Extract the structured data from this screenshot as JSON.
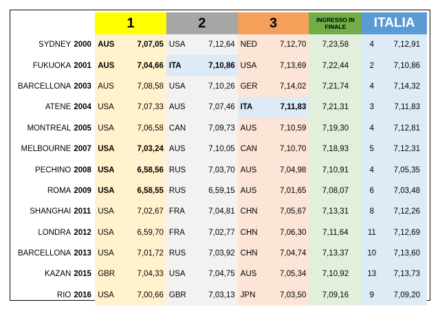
{
  "header": {
    "col1": "1",
    "col2": "2",
    "col3": "3",
    "ingresso": "INGRESSO IN FINALE",
    "italia": "ITALIA"
  },
  "rows": [
    {
      "city": "SYDNEY",
      "year": "2000",
      "n1": "AUS",
      "v1": "7,07,05",
      "n2": "USA",
      "v2": "7,12,64",
      "n3": "NED",
      "v3": "7,12,70",
      "ing": "7,23,58",
      "rank": "4",
      "time": "7,12,91"
    },
    {
      "city": "FUKUOKA",
      "year": "2001",
      "n1": "AUS",
      "v1": "7,04,66",
      "n2": "ITA",
      "v2": "7,10,86",
      "n3": "USA",
      "v3": "7,13,69",
      "ing": "7,22,44",
      "rank": "2",
      "time": "7,10,86"
    },
    {
      "city": "BARCELLONA",
      "year": "2003",
      "n1": "AUS",
      "v1": "7,08,58",
      "n2": "USA",
      "v2": "7,10,26",
      "n3": "GER",
      "v3": "7,14,02",
      "ing": "7,21,74",
      "rank": "4",
      "time": "7,14,32"
    },
    {
      "city": "ATENE",
      "year": "2004",
      "n1": "USA",
      "v1": "7,07,33",
      "n2": "AUS",
      "v2": "7,07,46",
      "n3": "ITA",
      "v3": "7,11,83",
      "ing": "7,21,31",
      "rank": "3",
      "time": "7,11,83"
    },
    {
      "city": "MONTREAL",
      "year": "2005",
      "n1": "USA",
      "v1": "7,06,58",
      "n2": "CAN",
      "v2": "7,09,73",
      "n3": "AUS",
      "v3": "7,10,59",
      "ing": "7,19,30",
      "rank": "4",
      "time": "7,12,81"
    },
    {
      "city": "MELBOURNE",
      "year": "2007",
      "n1": "USA",
      "v1": "7,03,24",
      "n2": "AUS",
      "v2": "7,10,05",
      "n3": "CAN",
      "v3": "7,10,70",
      "ing": "7,18,93",
      "rank": "5",
      "time": "7,12,31"
    },
    {
      "city": "PECHINO",
      "year": "2008",
      "n1": "USA",
      "v1": "6,58,56",
      "n2": "RUS",
      "v2": "7,03,70",
      "n3": "AUS",
      "v3": "7,04,98",
      "ing": "7,10,91",
      "rank": "4",
      "time": "7,05,35"
    },
    {
      "city": "ROMA",
      "year": "2009",
      "n1": "USA",
      "v1": "6,58,55",
      "n2": "RUS",
      "v2": "6,59,15",
      "n3": "AUS",
      "v3": "7,01,65",
      "ing": "7,08,07",
      "rank": "6",
      "time": "7,03,48"
    },
    {
      "city": "SHANGHAI",
      "year": "2011",
      "n1": "USA",
      "v1": "7,02,67",
      "n2": "FRA",
      "v2": "7,04,81",
      "n3": "CHN",
      "v3": "7,05,67",
      "ing": "7,13,31",
      "rank": "8",
      "time": "7,12,26"
    },
    {
      "city": "LONDRA",
      "year": "2012",
      "n1": "USA",
      "v1": "6,59,70",
      "n2": "FRA",
      "v2": "7,02,77",
      "n3": "CHN",
      "v3": "7,06,30",
      "ing": "7,11,64",
      "rank": "11",
      "time": "7,12,69"
    },
    {
      "city": "BARCELLONA",
      "year": "2013",
      "n1": "USA",
      "v1": "7,01,72",
      "n2": "RUS",
      "v2": "7,03,92",
      "n3": "CHN",
      "v3": "7,04,74",
      "ing": "7,13,37",
      "rank": "10",
      "time": "7,13,60"
    },
    {
      "city": "KAZAN",
      "year": "2015",
      "n1": "GBR",
      "v1": "7,04,33",
      "n2": "USA",
      "v2": "7,04,75",
      "n3": "AUS",
      "v3": "7,05,34",
      "ing": "7,10,92",
      "rank": "13",
      "time": "7,13,73"
    },
    {
      "city": "RIO",
      "year": "2016",
      "n1": "USA",
      "v1": "7,00,66",
      "n2": "GBR",
      "v2": "7,03,13",
      "n3": "JPN",
      "v3": "7,03,50",
      "ing": "7,09,16",
      "rank": "9",
      "time": "7,09,20"
    }
  ],
  "bold_first": [
    0,
    1,
    5,
    6,
    7
  ],
  "highlight_ita": [
    {
      "row": 1,
      "col": 2
    },
    {
      "row": 3,
      "col": 3
    }
  ],
  "colors": {
    "gold_header": "#ffff00",
    "silver_header": "#a6a6a6",
    "bronze_header": "#f4a05a",
    "ingresso_header": "#70ad47",
    "italia_header": "#5b9bd5",
    "ita_highlight": "#ddebf7"
  }
}
